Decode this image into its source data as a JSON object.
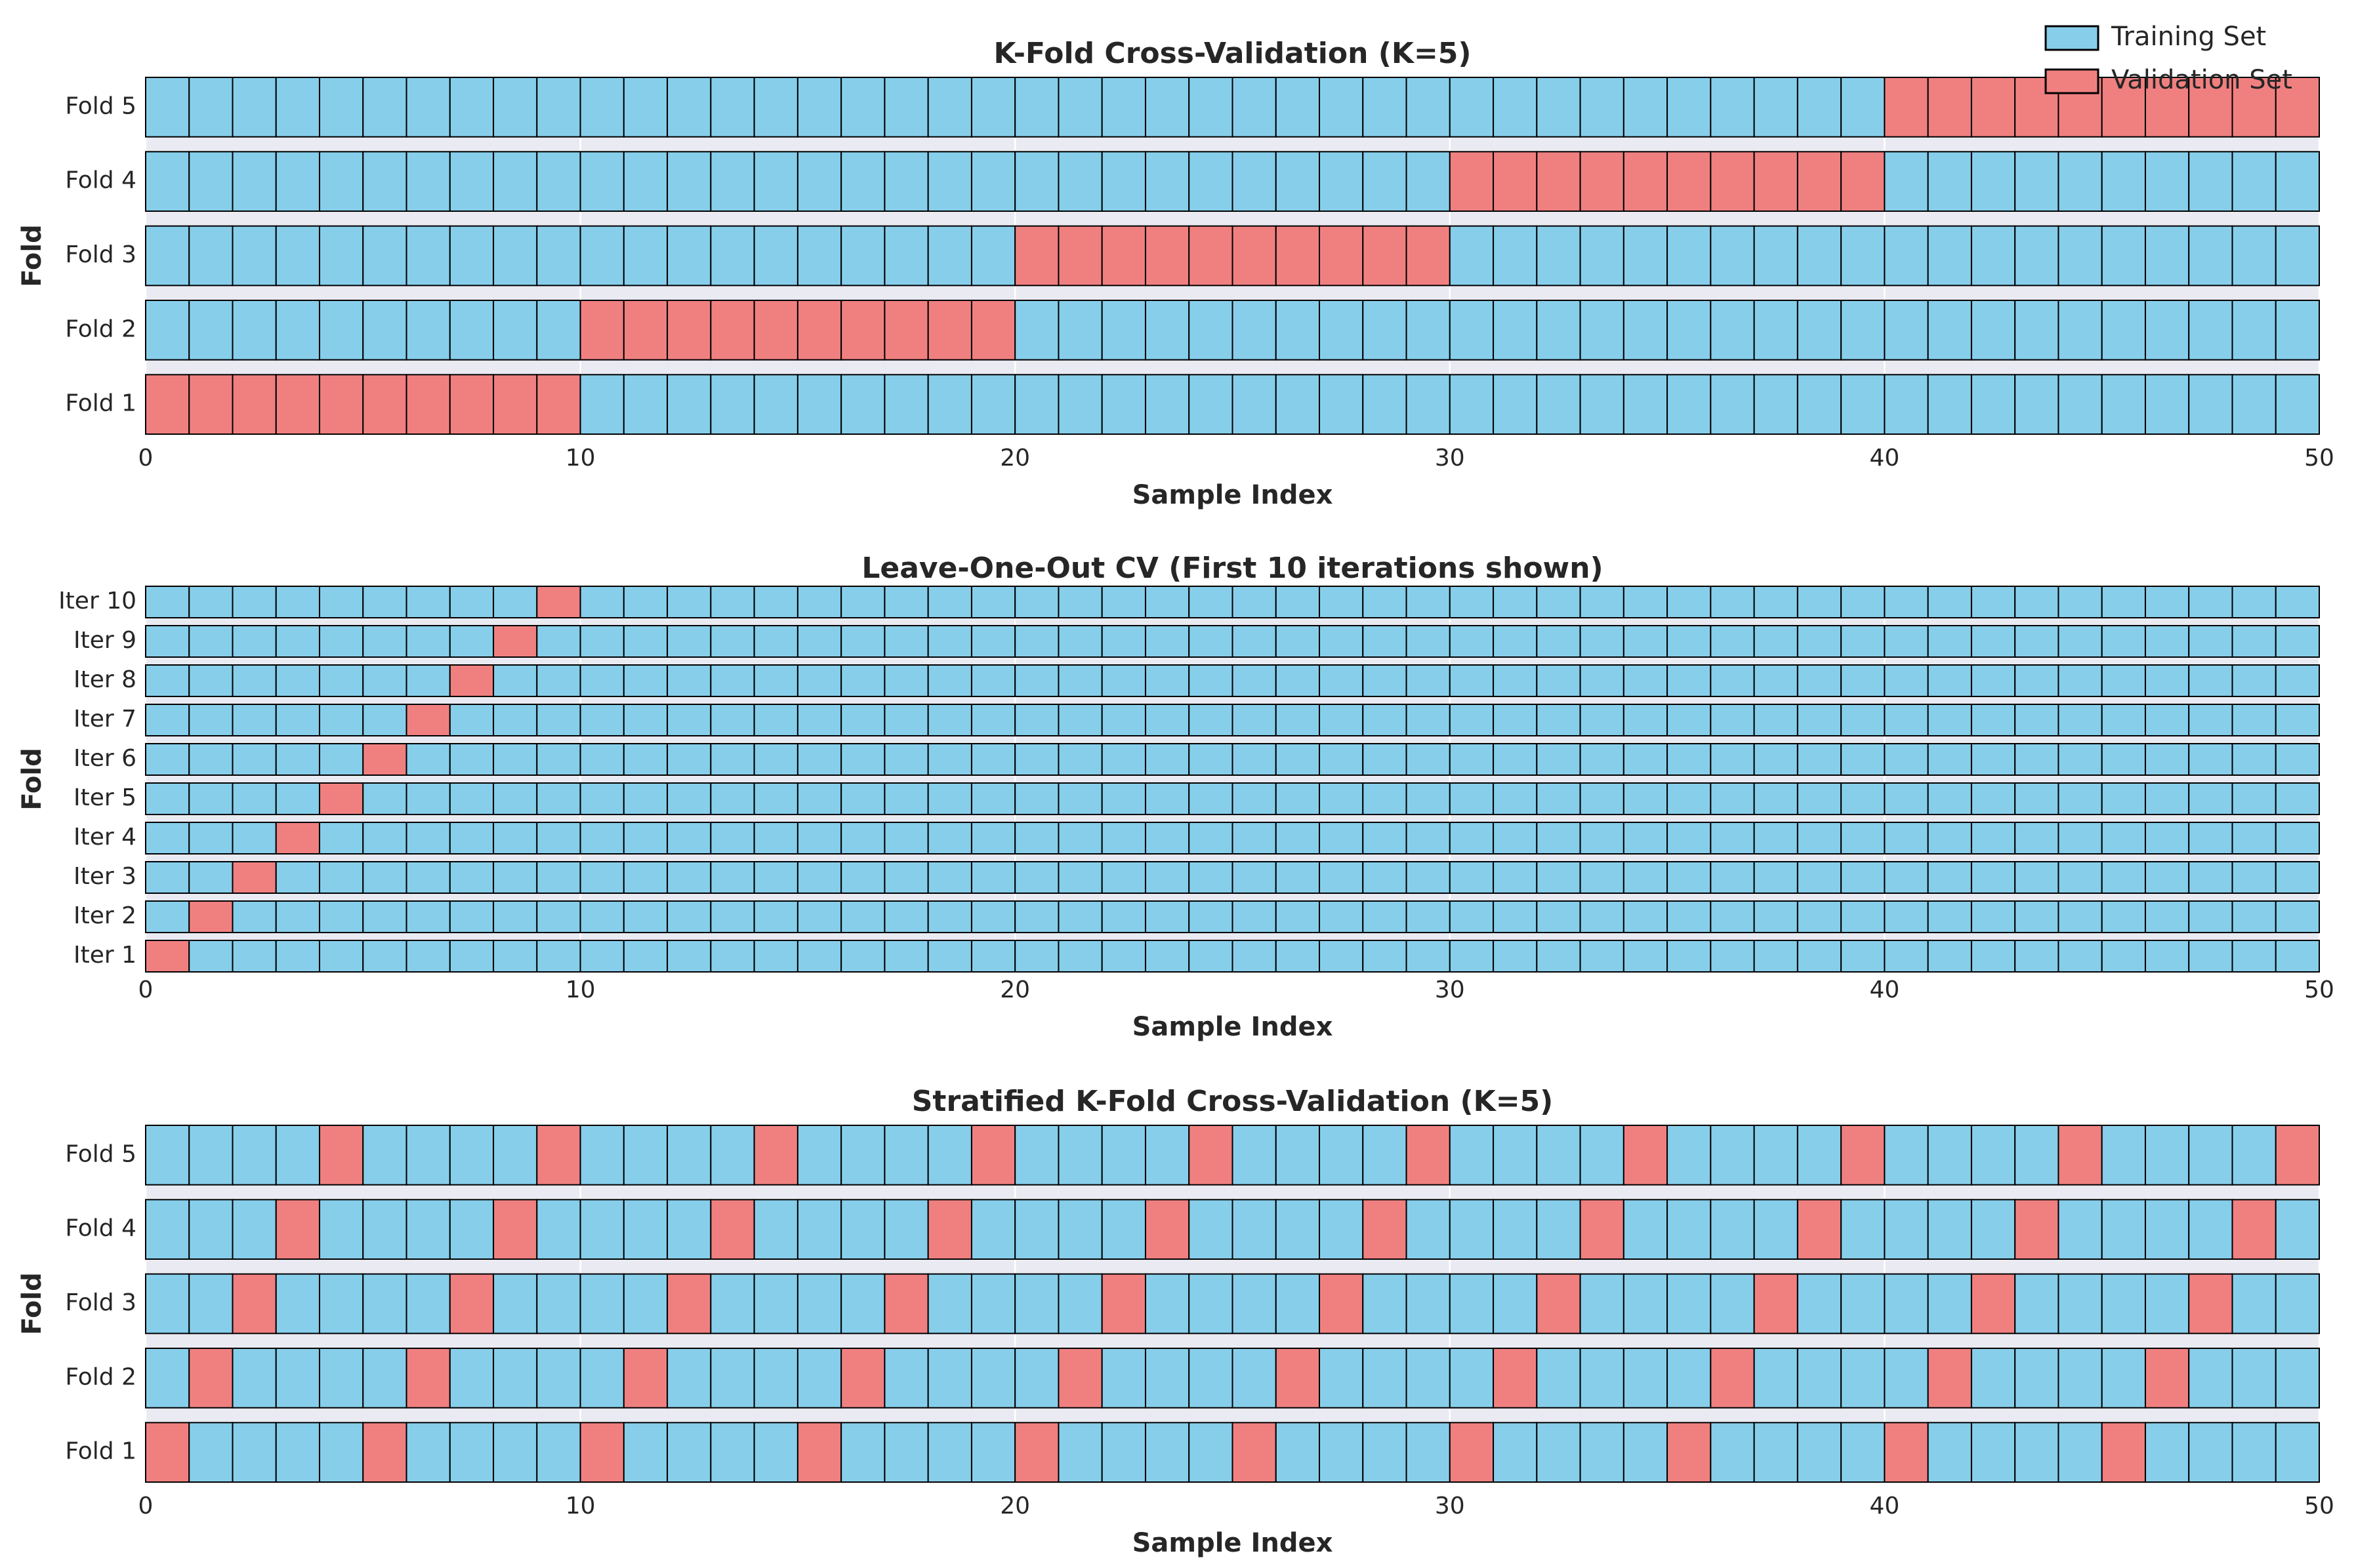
{
  "colors": {
    "training": "#87ceeb",
    "validation": "#f08080",
    "plot_background": "#eaeaf2"
  },
  "legend": {
    "placement": "top-right",
    "items": [
      {
        "label": "Training Set",
        "color": "#87ceeb"
      },
      {
        "label": "Validation Set",
        "color": "#f08080"
      }
    ]
  },
  "chart_data": [
    {
      "type": "heatmap",
      "title": "K-Fold Cross-Validation (K=5)",
      "xlabel": "Sample Index",
      "ylabel": "Fold",
      "xlim": [
        0,
        50
      ],
      "xticks": [
        0,
        10,
        20,
        30,
        40,
        50
      ],
      "n_samples": 50,
      "grid": true,
      "rows": [
        {
          "label": "Fold 1",
          "validation_indices": [
            0,
            1,
            2,
            3,
            4,
            5,
            6,
            7,
            8,
            9
          ]
        },
        {
          "label": "Fold 2",
          "validation_indices": [
            10,
            11,
            12,
            13,
            14,
            15,
            16,
            17,
            18,
            19
          ]
        },
        {
          "label": "Fold 3",
          "validation_indices": [
            20,
            21,
            22,
            23,
            24,
            25,
            26,
            27,
            28,
            29
          ]
        },
        {
          "label": "Fold 4",
          "validation_indices": [
            30,
            31,
            32,
            33,
            34,
            35,
            36,
            37,
            38,
            39
          ]
        },
        {
          "label": "Fold 5",
          "validation_indices": [
            40,
            41,
            42,
            43,
            44,
            45,
            46,
            47,
            48,
            49
          ]
        }
      ]
    },
    {
      "type": "heatmap",
      "title": "Leave-One-Out CV (First 10 iterations shown)",
      "xlabel": "Sample Index",
      "ylabel": "Fold",
      "xlim": [
        0,
        50
      ],
      "xticks": [
        0,
        10,
        20,
        30,
        40,
        50
      ],
      "n_samples": 50,
      "grid": true,
      "rows": [
        {
          "label": "Iter 1",
          "validation_indices": [
            0
          ]
        },
        {
          "label": "Iter 2",
          "validation_indices": [
            1
          ]
        },
        {
          "label": "Iter 3",
          "validation_indices": [
            2
          ]
        },
        {
          "label": "Iter 4",
          "validation_indices": [
            3
          ]
        },
        {
          "label": "Iter 5",
          "validation_indices": [
            4
          ]
        },
        {
          "label": "Iter 6",
          "validation_indices": [
            5
          ]
        },
        {
          "label": "Iter 7",
          "validation_indices": [
            6
          ]
        },
        {
          "label": "Iter 8",
          "validation_indices": [
            7
          ]
        },
        {
          "label": "Iter 9",
          "validation_indices": [
            8
          ]
        },
        {
          "label": "Iter 10",
          "validation_indices": [
            9
          ]
        }
      ]
    },
    {
      "type": "heatmap",
      "title": "Stratified K-Fold Cross-Validation (K=5)",
      "xlabel": "Sample Index",
      "ylabel": "Fold",
      "xlim": [
        0,
        50
      ],
      "xticks": [
        0,
        10,
        20,
        30,
        40,
        50
      ],
      "n_samples": 50,
      "grid": true,
      "rows": [
        {
          "label": "Fold 1",
          "validation_indices": [
            0,
            5,
            10,
            15,
            20,
            25,
            30,
            35,
            40,
            45
          ]
        },
        {
          "label": "Fold 2",
          "validation_indices": [
            1,
            6,
            11,
            16,
            21,
            26,
            31,
            36,
            41,
            46
          ]
        },
        {
          "label": "Fold 3",
          "validation_indices": [
            2,
            7,
            12,
            17,
            22,
            27,
            32,
            37,
            42,
            47
          ]
        },
        {
          "label": "Fold 4",
          "validation_indices": [
            3,
            8,
            13,
            18,
            23,
            28,
            33,
            38,
            43,
            48
          ]
        },
        {
          "label": "Fold 5",
          "validation_indices": [
            4,
            9,
            14,
            19,
            24,
            29,
            34,
            39,
            44,
            49
          ]
        }
      ]
    }
  ]
}
